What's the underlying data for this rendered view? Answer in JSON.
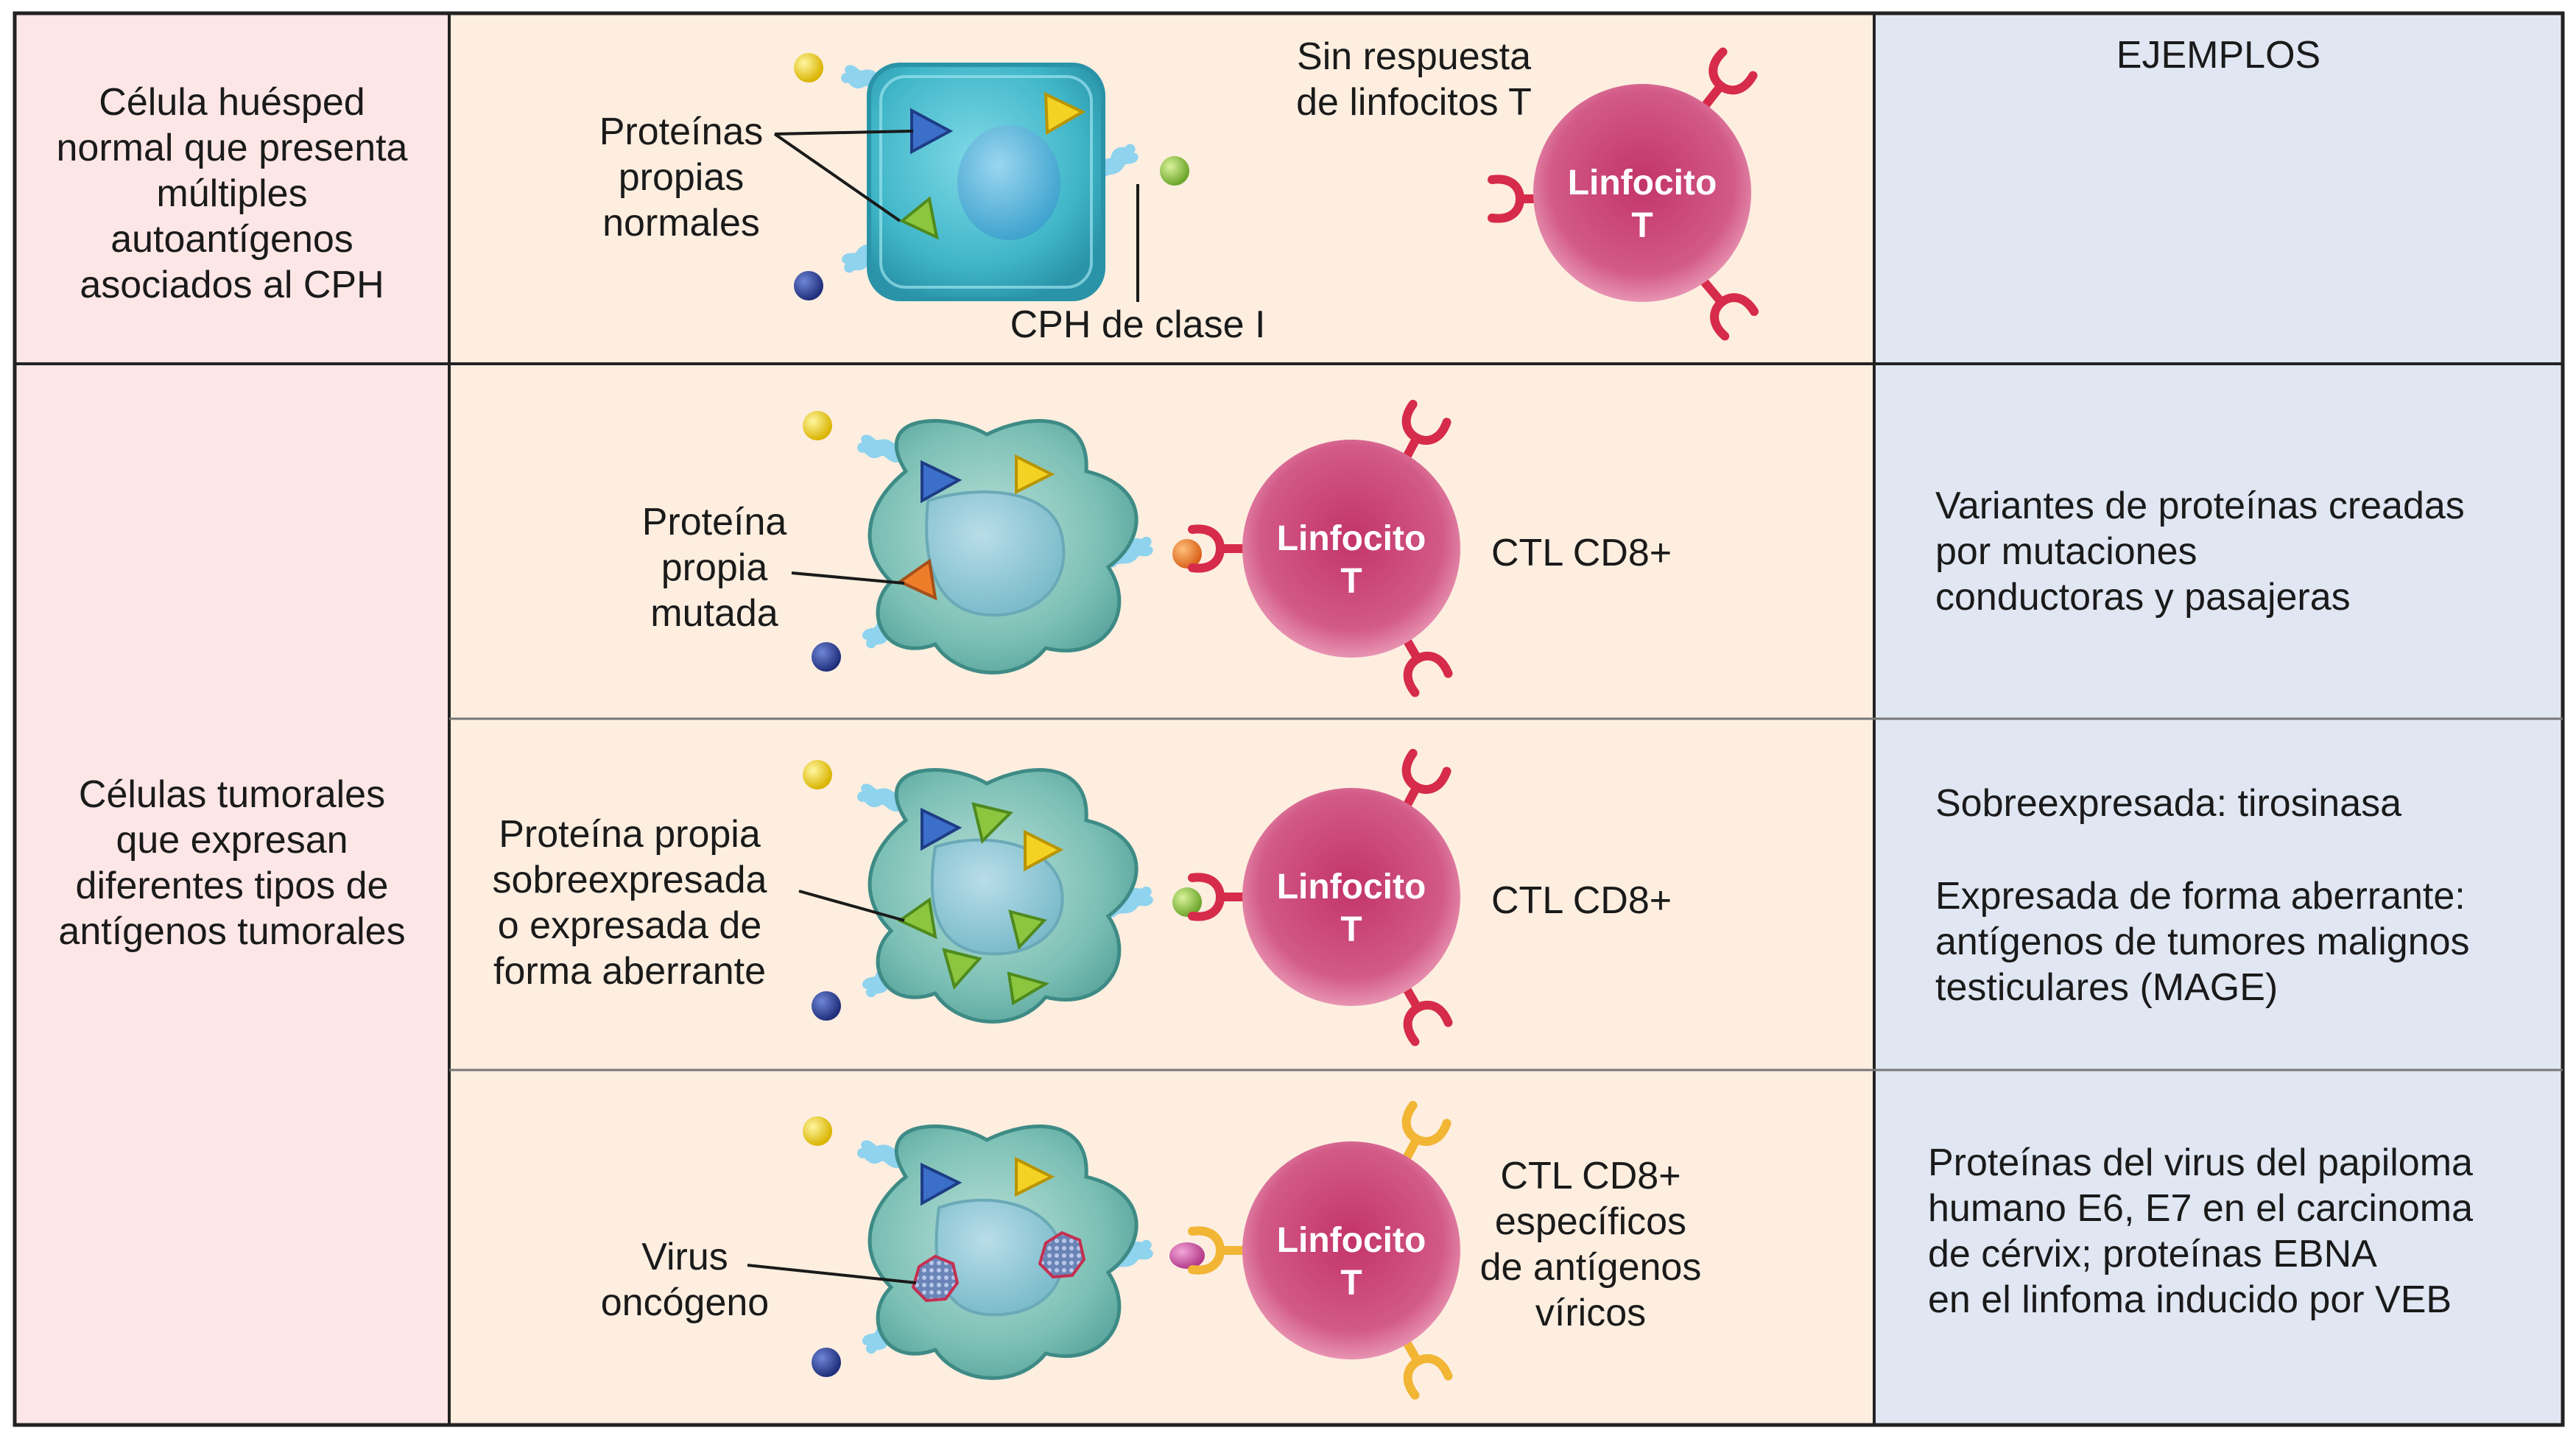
{
  "header": {
    "examples_title": "EJEMPLOS"
  },
  "rows": {
    "normal_label": "Célula huésped\nnormal que presenta\nmúltiples\nautoantígenos\nasociados al CPH",
    "tumor_label": "Células tumorales\nque expresan\ndiferentes tipos de\nantígenos tumorales"
  },
  "normal": {
    "proteins_label": "Proteínas\npropias\nnormales",
    "mhc_label": "CPH de clase I",
    "no_response_label": "Sin respuesta\nde linfocitos T",
    "tcell_label": "Linfocito\nT"
  },
  "mutated": {
    "protein_label": "Proteína\npropia\nmutada",
    "tcell_label": "Linfocito\nT",
    "ctl_label": "CTL CD8+",
    "example": "Variantes de proteínas creadas\npor mutaciones\nconductoras y pasajeras"
  },
  "overexpressed": {
    "protein_label": "Proteína propia\nsobreexpresada\no expresada de\nforma aberrante",
    "tcell_label": "Linfocito\nT",
    "ctl_label": "CTL CD8+",
    "example_1": "Sobreexpresada: tirosinasa",
    "example_2": "Expresada de forma aberrante:\nantígenos de tumores malignos\ntesticulares (MAGE)"
  },
  "viral": {
    "virus_label": "Virus\noncógeno",
    "tcell_label": "Linfocito\nT",
    "ctl_label": "CTL CD8+\nespecíficos\nde antígenos\nvíricos",
    "example": "Proteínas del virus del papiloma\nhumano E6, E7 en el carcinoma\nde cérvix; proteínas EBNA\nen el linfoma inducido por VEB"
  },
  "colors": {
    "left_col_bg": "#fde6e6",
    "mid_col_bg": "#fdeee0",
    "right_col_bg": "#e0e6f2",
    "border": "#222222",
    "cell_blue": "#3fb6c8",
    "tumor_cell": "#6fb3ad",
    "tcell_pink": "#d0507c",
    "receptor_red": "#d62b4a",
    "receptor_yellow": "#f2b534",
    "mhc_light_blue": "#8fd3ef",
    "peptide_blue": "#3b6fc9",
    "peptide_yellow": "#f3d223",
    "peptide_green": "#8cc63f",
    "peptide_orange": "#ee7d2a"
  }
}
